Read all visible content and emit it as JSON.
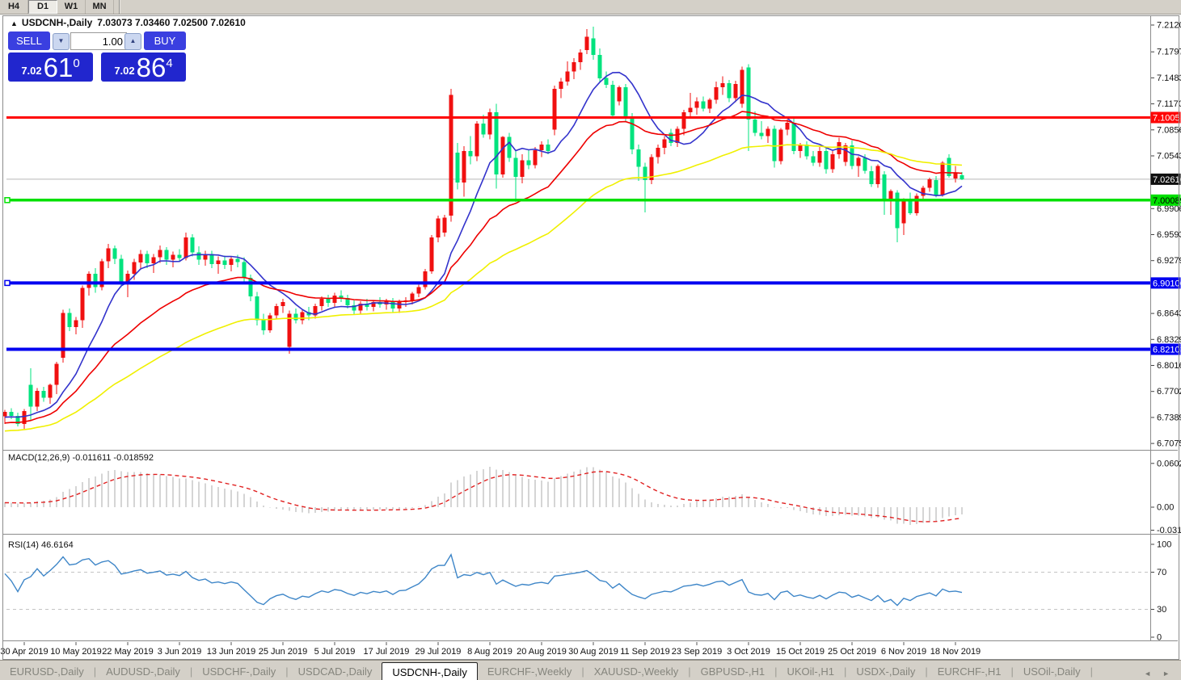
{
  "window": {
    "timeframes": [
      {
        "label": "H4",
        "active": false
      },
      {
        "label": "D1",
        "active": true
      },
      {
        "label": "W1",
        "active": false
      },
      {
        "label": "MN",
        "active": false
      }
    ]
  },
  "icons": {
    "collapse": "▲",
    "stepper_down": "▼",
    "stepper_up": "▲",
    "tab_prev": "◄",
    "tab_next": "►"
  },
  "chart": {
    "symbol": "USDCNH-,Daily",
    "ohlc_text": "7.03073 7.03460 7.02500 7.02610",
    "trade_panel": {
      "sell_label": "SELL",
      "buy_label": "BUY",
      "volume": "1.00",
      "sell_price_small": "7.02",
      "sell_price_big": "61",
      "sell_price_sup": "0",
      "buy_price_small": "7.02",
      "buy_price_big": "86",
      "buy_price_sup": "4"
    },
    "colors": {
      "candle_up": "#F01010",
      "candle_down": "#00E37E",
      "ma_fast": "#3333CC",
      "ma_mid": "#EE0000",
      "ma_slow": "#F0F000",
      "macd_hist": "#ABABAB",
      "macd_signal": "#E02020",
      "rsi_line": "#3E86C8",
      "bid_line": "#B8B8B8",
      "axis_text": "#111111"
    },
    "price_axis": {
      "ticks": [
        "7.21200",
        "7.17970",
        "7.14835",
        "7.11700",
        "7.08565",
        "7.05430",
        "6.99065",
        "6.95930",
        "6.92795",
        "6.86430",
        "6.83295",
        "6.80160",
        "6.77025",
        "6.73890",
        "6.70755"
      ],
      "current": {
        "text": "7.02610",
        "bg": "#101010",
        "fg": "#FFFFFF",
        "value": 7.0261
      }
    },
    "hlines": [
      {
        "label": "7.10051",
        "value": 7.10051,
        "color": "#FF0404",
        "width": 3,
        "fg": "#FFFFFF",
        "marker": false
      },
      {
        "label": "7.00089",
        "value": 7.00089,
        "color": "#00E000",
        "width": 3.5,
        "fg": "#000000",
        "marker": true
      },
      {
        "label": "6.90100",
        "value": 6.901,
        "color": "#0000F0",
        "width": 4,
        "fg": "#FFFFFF",
        "marker": true
      },
      {
        "label": "6.82103",
        "value": 6.82103,
        "color": "#0000F0",
        "width": 4,
        "fg": "#FFFFFF",
        "marker": false
      }
    ],
    "date_axis": [
      {
        "i": 3,
        "label": "30 Apr 2019"
      },
      {
        "i": 11,
        "label": "10 May 2019"
      },
      {
        "i": 19,
        "label": "22 May 2019"
      },
      {
        "i": 27,
        "label": "3 Jun 2019"
      },
      {
        "i": 35,
        "label": "13 Jun 2019"
      },
      {
        "i": 43,
        "label": "25 Jun 2019"
      },
      {
        "i": 51,
        "label": "5 Jul 2019"
      },
      {
        "i": 59,
        "label": "17 Jul 2019"
      },
      {
        "i": 67,
        "label": "29 Jul 2019"
      },
      {
        "i": 75,
        "label": "8 Aug 2019"
      },
      {
        "i": 83,
        "label": "20 Aug 2019"
      },
      {
        "i": 91,
        "label": "30 Aug 2019"
      },
      {
        "i": 99,
        "label": "11 Sep 2019"
      },
      {
        "i": 107,
        "label": "23 Sep 2019"
      },
      {
        "i": 115,
        "label": "3 Oct 2019"
      },
      {
        "i": 123,
        "label": "15 Oct 2019"
      },
      {
        "i": 131,
        "label": "25 Oct 2019"
      },
      {
        "i": 139,
        "label": "6 Nov 2019"
      },
      {
        "i": 147,
        "label": "18 Nov 2019"
      }
    ],
    "ma": [
      {
        "type": "sma",
        "period": 10,
        "color_key": "ma_fast"
      },
      {
        "type": "ema",
        "period": 25,
        "color_key": "ma_mid"
      },
      {
        "type": "ema",
        "period": 55,
        "color_key": "ma_slow"
      }
    ],
    "macd": {
      "label": "MACD(12,26,9) -0.011611 -0.018592",
      "axis": [
        {
          "label": "0.060273",
          "value": 0.060273
        },
        {
          "label": "0.00",
          "value": 0.0
        },
        {
          "label": "-0.03172",
          "value": -0.03172
        }
      ]
    },
    "rsi": {
      "label": "RSI(14) 46.6164",
      "axis": [
        {
          "label": "100",
          "value": 100
        },
        {
          "label": "70",
          "value": 70
        },
        {
          "label": "30",
          "value": 30
        },
        {
          "label": "0",
          "value": 0
        }
      ],
      "levels": [
        70,
        30
      ]
    },
    "chart_data": {
      "type": "candlestick",
      "symbol": "USDCNH",
      "timeframe": "Daily",
      "note": "ohlc arrays [open,high,low,close], left-to-right",
      "candles": [
        [
          6.74,
          6.748,
          6.731,
          6.7455
        ],
        [
          6.7455,
          6.75,
          6.737,
          6.7405
        ],
        [
          6.7405,
          6.7445,
          6.728,
          6.731
        ],
        [
          6.731,
          6.749,
          6.725,
          6.7465
        ],
        [
          6.778,
          6.798,
          6.735,
          6.752
        ],
        [
          6.752,
          6.7745,
          6.7465,
          6.771
        ],
        [
          6.771,
          6.776,
          6.758,
          6.7625
        ],
        [
          6.7625,
          6.7795,
          6.7555,
          6.778
        ],
        [
          6.778,
          6.806,
          6.767,
          6.8035
        ],
        [
          6.811,
          6.869,
          6.805,
          6.865
        ],
        [
          6.865,
          6.87,
          6.843,
          6.848
        ],
        [
          6.848,
          6.86,
          6.839,
          6.856
        ],
        [
          6.856,
          6.898,
          6.847,
          6.895
        ],
        [
          6.895,
          6.915,
          6.886,
          6.912
        ],
        [
          6.912,
          6.919,
          6.889,
          6.896
        ],
        [
          6.896,
          6.93,
          6.892,
          6.927
        ],
        [
          6.927,
          6.948,
          6.919,
          6.943
        ],
        [
          6.943,
          6.946,
          6.924,
          6.93
        ],
        [
          6.93,
          6.935,
          6.896,
          6.903
        ],
        [
          6.903,
          6.916,
          6.884,
          6.912
        ],
        [
          6.912,
          6.93,
          6.905,
          6.926
        ],
        [
          6.926,
          6.941,
          6.917,
          6.936
        ],
        [
          6.936,
          6.94,
          6.919,
          6.925
        ],
        [
          6.925,
          6.936,
          6.913,
          6.932
        ],
        [
          6.932,
          6.946,
          6.925,
          6.941
        ],
        [
          6.941,
          6.944,
          6.923,
          6.929
        ],
        [
          6.929,
          6.939,
          6.92,
          6.935
        ],
        [
          6.935,
          6.942,
          6.926,
          6.931
        ],
        [
          6.931,
          6.962,
          6.928,
          6.956
        ],
        [
          6.956,
          6.96,
          6.933,
          6.938
        ],
        [
          6.938,
          6.945,
          6.923,
          6.929
        ],
        [
          6.929,
          6.94,
          6.922,
          6.936
        ],
        [
          6.936,
          6.94,
          6.919,
          6.924
        ],
        [
          6.924,
          6.933,
          6.912,
          6.928
        ],
        [
          6.928,
          6.934,
          6.918,
          6.923
        ],
        [
          6.923,
          6.933,
          6.915,
          6.93
        ],
        [
          6.93,
          6.935,
          6.92,
          6.926
        ],
        [
          6.926,
          6.932,
          6.902,
          6.907
        ],
        [
          6.907,
          6.911,
          6.879,
          6.885
        ],
        [
          6.885,
          6.89,
          6.85,
          6.856
        ],
        [
          6.856,
          6.864,
          6.8385,
          6.844
        ],
        [
          6.844,
          6.865,
          6.841,
          6.862
        ],
        [
          6.862,
          6.876,
          6.857,
          6.873
        ],
        [
          6.873,
          6.882,
          6.865,
          6.878
        ],
        [
          6.824,
          6.868,
          6.8155,
          6.864
        ],
        [
          6.864,
          6.87,
          6.852,
          6.856
        ],
        [
          6.856,
          6.869,
          6.851,
          6.866
        ],
        [
          6.866,
          6.872,
          6.856,
          6.862
        ],
        [
          6.862,
          6.876,
          6.858,
          6.873
        ],
        [
          6.873,
          6.885,
          6.868,
          6.882
        ],
        [
          6.882,
          6.887,
          6.872,
          6.877
        ],
        [
          6.877,
          6.889,
          6.872,
          6.886
        ],
        [
          6.886,
          6.892,
          6.878,
          6.883
        ],
        [
          6.883,
          6.887,
          6.87,
          6.874
        ],
        [
          6.874,
          6.88,
          6.863,
          6.868
        ],
        [
          6.868,
          6.879,
          6.864,
          6.876
        ],
        [
          6.876,
          6.882,
          6.868,
          6.872
        ],
        [
          6.872,
          6.88,
          6.867,
          6.878
        ],
        [
          6.878,
          6.884,
          6.871,
          6.875
        ],
        [
          6.875,
          6.882,
          6.869,
          6.879
        ],
        [
          6.879,
          6.883,
          6.866,
          6.87
        ],
        [
          6.87,
          6.881,
          6.865,
          6.879
        ],
        [
          6.879,
          6.884,
          6.872,
          6.88
        ],
        [
          6.88,
          6.89,
          6.875,
          6.888
        ],
        [
          6.888,
          6.899,
          6.884,
          6.896
        ],
        [
          6.896,
          6.918,
          6.893,
          6.915
        ],
        [
          6.915,
          6.959,
          6.912,
          6.956
        ],
        [
          6.956,
          6.982,
          6.95,
          6.979
        ],
        [
          6.962,
          6.983,
          6.957,
          6.98
        ],
        [
          6.982,
          7.135,
          6.975,
          7.128
        ],
        [
          7.058,
          7.07,
          7.014,
          7.022
        ],
        [
          7.022,
          7.066,
          7.005,
          7.06
        ],
        [
          7.06,
          7.078,
          7.044,
          7.054
        ],
        [
          7.054,
          7.096,
          7.048,
          7.093
        ],
        [
          7.093,
          7.104,
          7.076,
          7.08
        ],
        [
          7.08,
          7.111,
          7.074,
          7.107
        ],
        [
          7.107,
          7.117,
          7.015,
          7.032
        ],
        [
          7.032,
          7.078,
          7.028,
          7.077
        ],
        [
          7.077,
          7.082,
          7.047,
          7.052
        ],
        [
          7.052,
          7.06,
          6.999,
          7.029
        ],
        [
          7.029,
          7.056,
          7.021,
          7.049
        ],
        [
          7.049,
          7.061,
          7.038,
          7.043
        ],
        [
          7.043,
          7.065,
          7.039,
          7.061
        ],
        [
          7.061,
          7.072,
          7.053,
          7.068
        ],
        [
          7.068,
          7.074,
          7.056,
          7.06
        ],
        [
          7.086,
          7.139,
          7.079,
          7.135
        ],
        [
          7.135,
          7.148,
          7.124,
          7.144
        ],
        [
          7.144,
          7.168,
          7.139,
          7.156
        ],
        [
          7.156,
          7.172,
          7.147,
          7.167
        ],
        [
          7.167,
          7.183,
          7.158,
          7.179
        ],
        [
          7.182,
          7.207,
          7.177,
          7.198
        ],
        [
          7.196,
          7.21,
          7.17,
          7.176
        ],
        [
          7.176,
          7.184,
          7.144,
          7.148
        ],
        [
          7.148,
          7.156,
          7.136,
          7.14
        ],
        [
          7.14,
          7.145,
          7.099,
          7.103
        ],
        [
          7.12,
          7.139,
          7.115,
          7.137
        ],
        [
          7.137,
          7.141,
          7.095,
          7.1
        ],
        [
          7.1,
          7.106,
          7.056,
          7.062
        ],
        [
          7.062,
          7.068,
          7.024,
          7.041
        ],
        [
          7.041,
          7.046,
          6.986,
          7.025
        ],
        [
          7.025,
          7.056,
          7.02,
          7.053
        ],
        [
          7.053,
          7.068,
          7.045,
          7.064
        ],
        [
          7.064,
          7.078,
          7.056,
          7.074
        ],
        [
          7.082,
          7.087,
          7.066,
          7.07
        ],
        [
          7.07,
          7.09,
          7.065,
          7.087
        ],
        [
          7.087,
          7.11,
          7.079,
          7.107
        ],
        [
          7.107,
          7.13,
          7.101,
          7.112
        ],
        [
          7.112,
          7.125,
          7.104,
          7.12
        ],
        [
          7.12,
          7.126,
          7.108,
          7.111
        ],
        [
          7.111,
          7.124,
          7.106,
          7.122
        ],
        [
          7.122,
          7.144,
          7.117,
          7.137
        ],
        [
          7.137,
          7.15,
          7.128,
          7.142
        ],
        [
          7.142,
          7.146,
          7.119,
          7.124
        ],
        [
          7.124,
          7.145,
          7.119,
          7.141
        ],
        [
          7.117,
          7.162,
          7.112,
          7.158
        ],
        [
          7.161,
          7.165,
          7.06,
          7.098
        ],
        [
          7.098,
          7.108,
          7.078,
          7.082
        ],
        [
          7.082,
          7.096,
          7.074,
          7.078
        ],
        [
          7.078,
          7.09,
          7.07,
          7.087
        ],
        [
          7.087,
          7.091,
          7.04,
          7.048
        ],
        [
          7.048,
          7.088,
          7.044,
          7.086
        ],
        [
          7.086,
          7.098,
          7.079,
          7.094
        ],
        [
          7.094,
          7.099,
          7.056,
          7.06
        ],
        [
          7.06,
          7.07,
          7.052,
          7.068
        ],
        [
          7.068,
          7.072,
          7.05,
          7.054
        ],
        [
          7.054,
          7.06,
          7.042,
          7.046
        ],
        [
          7.046,
          7.065,
          7.041,
          7.06
        ],
        [
          7.06,
          7.064,
          7.033,
          7.038
        ],
        [
          7.038,
          7.06,
          7.034,
          7.056
        ],
        [
          7.056,
          7.076,
          7.051,
          7.071
        ],
        [
          7.047,
          7.07,
          7.042,
          7.067
        ],
        [
          7.067,
          7.073,
          7.038,
          7.042
        ],
        [
          7.042,
          7.054,
          7.029,
          7.052
        ],
        [
          7.052,
          7.056,
          7.033,
          7.036
        ],
        [
          7.036,
          7.042,
          7.017,
          7.02
        ],
        [
          7.02,
          7.044,
          7.016,
          7.042
        ],
        [
          7.032,
          7.036,
          6.983,
          7.001
        ],
        [
          7.001,
          7.014,
          6.983,
          7.012
        ],
        [
          7.01,
          7.013,
          6.95,
          6.967
        ],
        [
          6.973,
          7.003,
          6.959,
          7.002
        ],
        [
          7.002,
          7.01,
          6.983,
          6.985
        ],
        [
          6.985,
          7.009,
          6.982,
          7.006
        ],
        [
          7.006,
          7.018,
          7.001,
          7.016
        ],
        [
          7.016,
          7.028,
          7.011,
          7.026
        ],
        [
          7.025,
          7.03,
          7.004,
          7.007
        ],
        [
          7.007,
          7.048,
          7.005,
          7.046
        ],
        [
          7.052,
          7.056,
          7.028,
          7.03
        ],
        [
          7.027,
          7.042,
          7.022,
          7.034
        ],
        [
          7.0307,
          7.0346,
          7.025,
          7.0261
        ]
      ]
    }
  },
  "tabbar": {
    "tabs": [
      {
        "label": "EURUSD-,Daily",
        "active": false
      },
      {
        "label": "AUDUSD-,Daily",
        "active": false
      },
      {
        "label": "USDCHF-,Daily",
        "active": false
      },
      {
        "label": "USDCAD-,Daily",
        "active": false
      },
      {
        "label": "USDCNH-,Daily",
        "active": true
      },
      {
        "label": "EURCHF-,Weekly",
        "active": false
      },
      {
        "label": "XAUUSD-,Weekly",
        "active": false
      },
      {
        "label": "GBPUSD-,H1",
        "active": false
      },
      {
        "label": "UKOil-,H1",
        "active": false
      },
      {
        "label": "USDX-,Daily",
        "active": false
      },
      {
        "label": "EURCHF-,H1",
        "active": false
      },
      {
        "label": "USOil-,Daily",
        "active": false
      }
    ]
  }
}
